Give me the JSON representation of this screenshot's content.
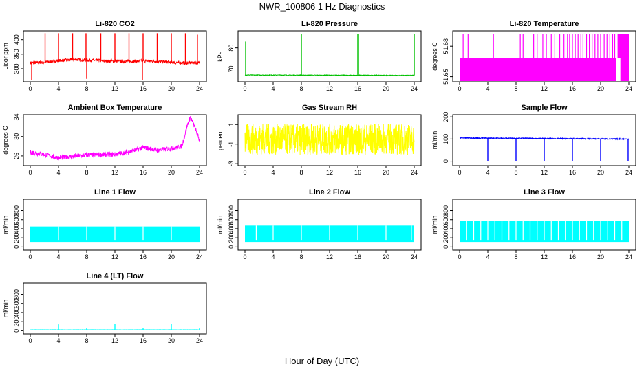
{
  "title": "NWR_100806  1 Hz Diagnostics",
  "xlabel": "Hour of Day (UTC)",
  "chart_data": [
    {
      "type": "line",
      "title": "Li-820 CO2",
      "ylabel": "Licor ppm",
      "color": "#ff0000",
      "xlim": [
        0,
        24
      ],
      "xticks": [
        0,
        4,
        8,
        12,
        16,
        20,
        24
      ],
      "ylim": [
        255,
        430
      ],
      "yticks": [
        300,
        350,
        400
      ],
      "baseline": [
        [
          0,
          320
        ],
        [
          2,
          322
        ],
        [
          4,
          328
        ],
        [
          6,
          331
        ],
        [
          8,
          330
        ],
        [
          10,
          327
        ],
        [
          12,
          326
        ],
        [
          14,
          325
        ],
        [
          16,
          327
        ],
        [
          18,
          325
        ],
        [
          20,
          322
        ],
        [
          22,
          320
        ],
        [
          24,
          320
        ]
      ],
      "noise": 5,
      "spikes": [
        [
          0.2,
          262
        ],
        [
          2.1,
          422
        ],
        [
          4.0,
          422
        ],
        [
          6.0,
          422
        ],
        [
          7.9,
          422
        ],
        [
          8.0,
          265
        ],
        [
          10.0,
          422
        ],
        [
          12.0,
          422
        ],
        [
          14.0,
          422
        ],
        [
          15.9,
          262
        ],
        [
          16.0,
          422
        ],
        [
          18.0,
          422
        ],
        [
          20.0,
          422
        ],
        [
          22.0,
          422
        ],
        [
          23.7,
          417
        ]
      ]
    },
    {
      "type": "line",
      "title": "Li-820 Pressure",
      "ylabel": "kPa",
      "color": "#00c000",
      "xlim": [
        0,
        24
      ],
      "xticks": [
        0,
        4,
        8,
        12,
        16,
        20,
        24
      ],
      "ylim": [
        64,
        88
      ],
      "yticks": [
        70,
        80
      ],
      "baseline": [
        [
          0,
          67.2
        ],
        [
          24,
          67.0
        ]
      ],
      "noise": 0.15,
      "spikes": [
        [
          0.1,
          83
        ],
        [
          8.0,
          86.5
        ],
        [
          16.0,
          86.5
        ],
        [
          16.1,
          86.5
        ],
        [
          24.0,
          86.5
        ]
      ]
    },
    {
      "type": "area",
      "title": "Li-820 Temperature",
      "ylabel": "degrees C",
      "color": "#ff00ff",
      "xlim": [
        0,
        24
      ],
      "xticks": [
        0,
        4,
        8,
        12,
        16,
        20,
        24
      ],
      "ylim": [
        51.645,
        51.695
      ],
      "yticks": [
        51.65,
        51.68
      ],
      "band": [
        51.645,
        51.668
      ],
      "band_gap": [
        22.2,
        22.5
      ],
      "high_level": 51.692,
      "high_from": 22.4,
      "spikes": [
        0.5,
        1.2,
        4.8,
        8.6,
        9.0,
        10.5,
        11.0,
        11.8,
        12.3,
        13.0,
        13.5,
        14.2,
        14.8,
        15.3,
        15.6,
        16.0,
        16.4,
        16.8,
        17.2,
        17.5,
        18.0,
        18.4,
        18.8,
        19.2,
        19.6,
        20.0,
        20.5,
        20.9,
        21.3,
        21.7,
        22.0
      ]
    },
    {
      "type": "line",
      "title": "Ambient Box Temperature",
      "ylabel": "degrees C",
      "color": "#ff00ff",
      "xlim": [
        0,
        24
      ],
      "xticks": [
        0,
        4,
        8,
        12,
        16,
        20,
        24
      ],
      "ylim": [
        24,
        34.5
      ],
      "yticks": [
        26,
        30,
        34
      ],
      "baseline": [
        [
          0,
          26.8
        ],
        [
          2,
          26.3
        ],
        [
          4,
          25.6
        ],
        [
          6,
          25.9
        ],
        [
          8,
          26.2
        ],
        [
          10,
          26.3
        ],
        [
          12,
          26.3
        ],
        [
          14,
          26.8
        ],
        [
          16,
          27.7
        ],
        [
          18,
          27.2
        ],
        [
          20,
          27.5
        ],
        [
          21.5,
          28.0
        ],
        [
          22.3,
          32.5
        ],
        [
          22.7,
          34.0
        ],
        [
          23.3,
          32.0
        ],
        [
          24,
          29.2
        ]
      ],
      "noise": 0.5
    },
    {
      "type": "area",
      "title": "Gas Stream RH",
      "ylabel": "percent",
      "color": "#ffff00",
      "xlim": [
        0,
        24
      ],
      "xticks": [
        0,
        4,
        8,
        12,
        16,
        20,
        24
      ],
      "ylim": [
        -3.2,
        2.0
      ],
      "yticks": [
        -3,
        -1,
        1
      ],
      "center": -0.5,
      "amplitude": 1.6
    },
    {
      "type": "line",
      "title": "Sample Flow",
      "ylabel": "ml/min",
      "color": "#0000ff",
      "xlim": [
        0,
        24
      ],
      "xticks": [
        0,
        4,
        8,
        12,
        16,
        20,
        24
      ],
      "ylim": [
        -20,
        210
      ],
      "yticks": [
        0,
        100,
        200
      ],
      "baseline": [
        [
          0,
          105
        ],
        [
          24,
          100
        ]
      ],
      "noise": 2,
      "spikes": [
        [
          4.0,
          0
        ],
        [
          8.0,
          0
        ],
        [
          12.0,
          0
        ],
        [
          16.0,
          0
        ],
        [
          20.0,
          0
        ],
        [
          23.9,
          0
        ]
      ]
    },
    {
      "type": "area",
      "title": "Line 1 Flow",
      "ylabel": "ml/min",
      "color": "#00ffff",
      "xlim": [
        0,
        24
      ],
      "xticks": [
        0,
        4,
        8,
        12,
        16,
        20,
        24
      ],
      "ylim": [
        -70,
        1050
      ],
      "yticks": [
        0,
        200,
        400,
        600,
        800
      ],
      "band": [
        110,
        450
      ],
      "gaps": [
        4.0,
        8.0,
        12.0,
        16.0,
        20.0
      ]
    },
    {
      "type": "area",
      "title": "Line 2 Flow",
      "ylabel": "ml/min",
      "color": "#00ffff",
      "xlim": [
        0,
        24
      ],
      "xticks": [
        0,
        4,
        8,
        12,
        16,
        20,
        24
      ],
      "ylim": [
        -70,
        1050
      ],
      "yticks": [
        0,
        200,
        400,
        600,
        800
      ],
      "band": [
        110,
        470
      ],
      "gaps": [
        1.6,
        4.0,
        8.0,
        12.0,
        16.0,
        20.0,
        23.6
      ]
    },
    {
      "type": "area",
      "title": "Line 3 Flow",
      "ylabel": "ml/min",
      "color": "#00ffff",
      "xlim": [
        0,
        24
      ],
      "xticks": [
        0,
        4,
        8,
        12,
        16,
        20,
        24
      ],
      "ylim": [
        -70,
        1050
      ],
      "yticks": [
        0,
        200,
        400,
        600,
        800
      ],
      "band": [
        110,
        580
      ],
      "gaps": [
        1.0,
        2.0,
        3.0,
        4.0,
        5.0,
        6.0,
        7.0,
        8.0,
        9.0,
        10.0,
        11.0,
        12.0,
        13.0,
        14.0,
        15.0,
        16.0,
        17.0,
        18.0,
        19.0,
        20.0,
        21.0,
        22.0,
        23.0
      ]
    },
    {
      "type": "line",
      "title": "Line 4 (LT) Flow",
      "ylabel": "ml/min",
      "color": "#00ffff",
      "xlim": [
        0,
        24
      ],
      "xticks": [
        0,
        4,
        8,
        12,
        16,
        20,
        24
      ],
      "ylim": [
        -70,
        1050
      ],
      "yticks": [
        0,
        200,
        400,
        600,
        800
      ],
      "baseline": [
        [
          0,
          20
        ],
        [
          24,
          20
        ]
      ],
      "noise": 3,
      "spikes": [
        [
          4.0,
          140
        ],
        [
          8.0,
          60
        ],
        [
          12.0,
          150
        ],
        [
          16.0,
          60
        ],
        [
          20.0,
          150
        ],
        [
          24.0,
          60
        ]
      ]
    }
  ]
}
